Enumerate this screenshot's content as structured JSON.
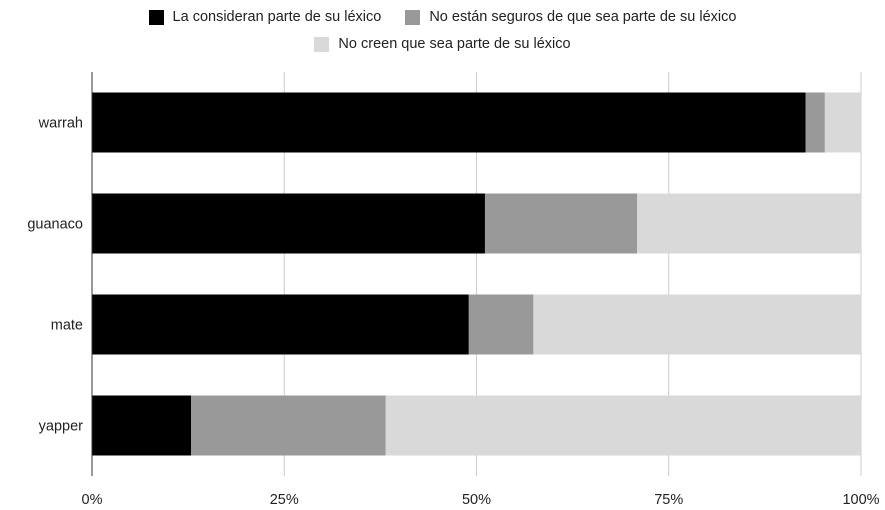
{
  "chart_data": {
    "type": "bar",
    "orientation": "horizontal",
    "stacked": "percent",
    "categories": [
      "warrah",
      "guanaco",
      "mate",
      "yapper"
    ],
    "series": [
      {
        "name": "La consideran parte de su léxico",
        "color": "#000000",
        "values": [
          92.8,
          51.1,
          49.0,
          12.9
        ]
      },
      {
        "name": "No están seguros de que sea parte de su léxico",
        "color": "#999999",
        "values": [
          2.5,
          19.8,
          8.4,
          25.3
        ]
      },
      {
        "name": "No creen que sea parte de su léxico",
        "color": "#d9d9d9",
        "values": [
          4.7,
          29.1,
          42.6,
          61.8
        ]
      }
    ],
    "xlim": [
      0,
      100
    ],
    "x_ticks": [
      "0%",
      "25%",
      "50%",
      "75%",
      "100%"
    ],
    "x_tick_values": [
      0,
      25,
      50,
      75,
      100
    ],
    "grid": true,
    "legend_position": "top"
  }
}
